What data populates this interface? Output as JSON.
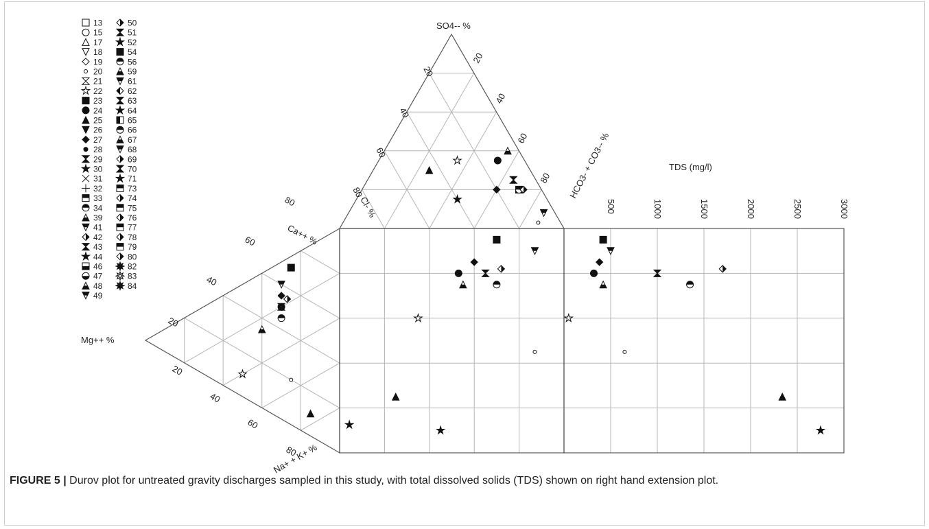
{
  "caption": {
    "figure_label": "FIGURE 5 |",
    "text": " Durov plot for untreated gravity discharges sampled in this study, with total dissolved solids (TDS) shown on right hand extension plot."
  },
  "chart_data": {
    "type": "scatter",
    "plot_kind": "Durov diagram with TDS extension",
    "axis_labels": {
      "so4": "SO4-- %",
      "hco3": "HCO3- + CO3-- %",
      "cl": "Cl- %",
      "ca": "Ca++ %",
      "mg": "Mg++ %",
      "na": "Na+ + K+ %",
      "tds": "TDS (mg/l)"
    },
    "anion_ticks": [
      "20",
      "40",
      "60",
      "80"
    ],
    "cation_ticks": [
      "20",
      "40",
      "60",
      "80"
    ],
    "tds_ticks": [
      "500",
      "1000",
      "1500",
      "2000",
      "2500",
      "3000"
    ],
    "tds_range": [
      0,
      3000
    ],
    "grid": true,
    "legend_position": "top-left",
    "legend": [
      {
        "id": "13",
        "marker": "square-open"
      },
      {
        "id": "15",
        "marker": "circle-open"
      },
      {
        "id": "17",
        "marker": "triangle-up-open"
      },
      {
        "id": "18",
        "marker": "triangle-down-open"
      },
      {
        "id": "19",
        "marker": "diamond-open"
      },
      {
        "id": "20",
        "marker": "dot-small"
      },
      {
        "id": "21",
        "marker": "hourglass-open"
      },
      {
        "id": "22",
        "marker": "star-open"
      },
      {
        "id": "23",
        "marker": "square-filled"
      },
      {
        "id": "24",
        "marker": "circle-filled"
      },
      {
        "id": "25",
        "marker": "triangle-up-filled"
      },
      {
        "id": "26",
        "marker": "triangle-down-filled"
      },
      {
        "id": "27",
        "marker": "diamond-filled"
      },
      {
        "id": "28",
        "marker": "dot-filled"
      },
      {
        "id": "29",
        "marker": "hourglass-filled"
      },
      {
        "id": "30",
        "marker": "star-filled"
      },
      {
        "id": "31",
        "marker": "cross-x"
      },
      {
        "id": "32",
        "marker": "cross-plus"
      },
      {
        "id": "33",
        "marker": "square-half-top"
      },
      {
        "id": "34",
        "marker": "circle-half-top"
      },
      {
        "id": "39",
        "marker": "triangle-up-half-bottom"
      },
      {
        "id": "41",
        "marker": "triangle-down-half-top"
      },
      {
        "id": "42",
        "marker": "diamond-half-top"
      },
      {
        "id": "43",
        "marker": "hourglass-half"
      },
      {
        "id": "44",
        "marker": "star-half"
      },
      {
        "id": "46",
        "marker": "square-half-bottom"
      },
      {
        "id": "47",
        "marker": "circle-half-bottom"
      },
      {
        "id": "48",
        "marker": "triangle-up-half-left"
      },
      {
        "id": "49",
        "marker": "triangle-down-half-bottom"
      },
      {
        "id": "50",
        "marker": "diamond-half-bottom"
      },
      {
        "id": "51",
        "marker": "hourglass-half-b"
      },
      {
        "id": "52",
        "marker": "star-half-b"
      },
      {
        "id": "54",
        "marker": "square-half-right"
      },
      {
        "id": "56",
        "marker": "circle-half-right"
      },
      {
        "id": "59",
        "marker": "triangle-up-half-right"
      },
      {
        "id": "61",
        "marker": "triangle-down-half-right"
      },
      {
        "id": "62",
        "marker": "diamond-half-left"
      },
      {
        "id": "63",
        "marker": "hourglass-half-c"
      },
      {
        "id": "64",
        "marker": "star-half-c"
      },
      {
        "id": "65",
        "marker": "square-half-left"
      },
      {
        "id": "66",
        "marker": "circle-half-left"
      },
      {
        "id": "67",
        "marker": "triangle-up-half-c"
      },
      {
        "id": "68",
        "marker": "triangle-down-half-c"
      },
      {
        "id": "69",
        "marker": "diamond-half-c"
      },
      {
        "id": "70",
        "marker": "hourglass-half-d"
      },
      {
        "id": "71",
        "marker": "star-half-d"
      },
      {
        "id": "73",
        "marker": "square-diag-a"
      },
      {
        "id": "74",
        "marker": "diamond-diag-a"
      },
      {
        "id": "75",
        "marker": "square-diag-b"
      },
      {
        "id": "76",
        "marker": "diamond-half-right"
      },
      {
        "id": "77",
        "marker": "square-diag-c"
      },
      {
        "id": "78",
        "marker": "diamond-diag-b"
      },
      {
        "id": "79",
        "marker": "square-diag-d"
      },
      {
        "id": "80",
        "marker": "diamond-diag-c"
      },
      {
        "id": "82",
        "marker": "burst-filled"
      },
      {
        "id": "83",
        "marker": "sun-open"
      },
      {
        "id": "84",
        "marker": "gear-filled"
      }
    ],
    "points": [
      {
        "id": "20",
        "so4": 3,
        "cl": 10,
        "ca": 20,
        "na": 55,
        "tds": 650
      },
      {
        "id": "22",
        "so4": 35,
        "cl": 30,
        "ca": 10,
        "na": 40,
        "tds": 50
      },
      {
        "id": "25",
        "so4": 30,
        "cl": 45,
        "ca": 10,
        "na": 75,
        "tds": 2340
      },
      {
        "id": "52",
        "so4": 15,
        "cl": 40,
        "ca": 15,
        "na": 90,
        "tds": 2750
      },
      {
        "id": "23",
        "so4": 20,
        "cl": 10,
        "ca": 70,
        "na": 5,
        "tds": 420
      },
      {
        "id": "27",
        "so4": 20,
        "cl": 20,
        "ca": 55,
        "na": 15,
        "tds": 380
      },
      {
        "id": "29",
        "so4": 25,
        "cl": 10,
        "ca": 50,
        "na": 20,
        "tds": 1000
      },
      {
        "id": "34",
        "so4": 20,
        "cl": 10,
        "ca": 45,
        "na": 25,
        "tds": 1350
      },
      {
        "id": "74",
        "so4": 20,
        "cl": 8,
        "ca": 55,
        "na": 18,
        "tds": 1700
      },
      {
        "id": "49",
        "so4": 8,
        "cl": 5,
        "ca": 60,
        "na": 10,
        "tds": 500
      },
      {
        "id": "24",
        "so4": 35,
        "cl": 12,
        "ca": 50,
        "na": 20,
        "tds": 320
      },
      {
        "id": "48",
        "so4": 40,
        "cl": 5,
        "ca": 35,
        "na": 25,
        "tds": 420
      }
    ]
  }
}
